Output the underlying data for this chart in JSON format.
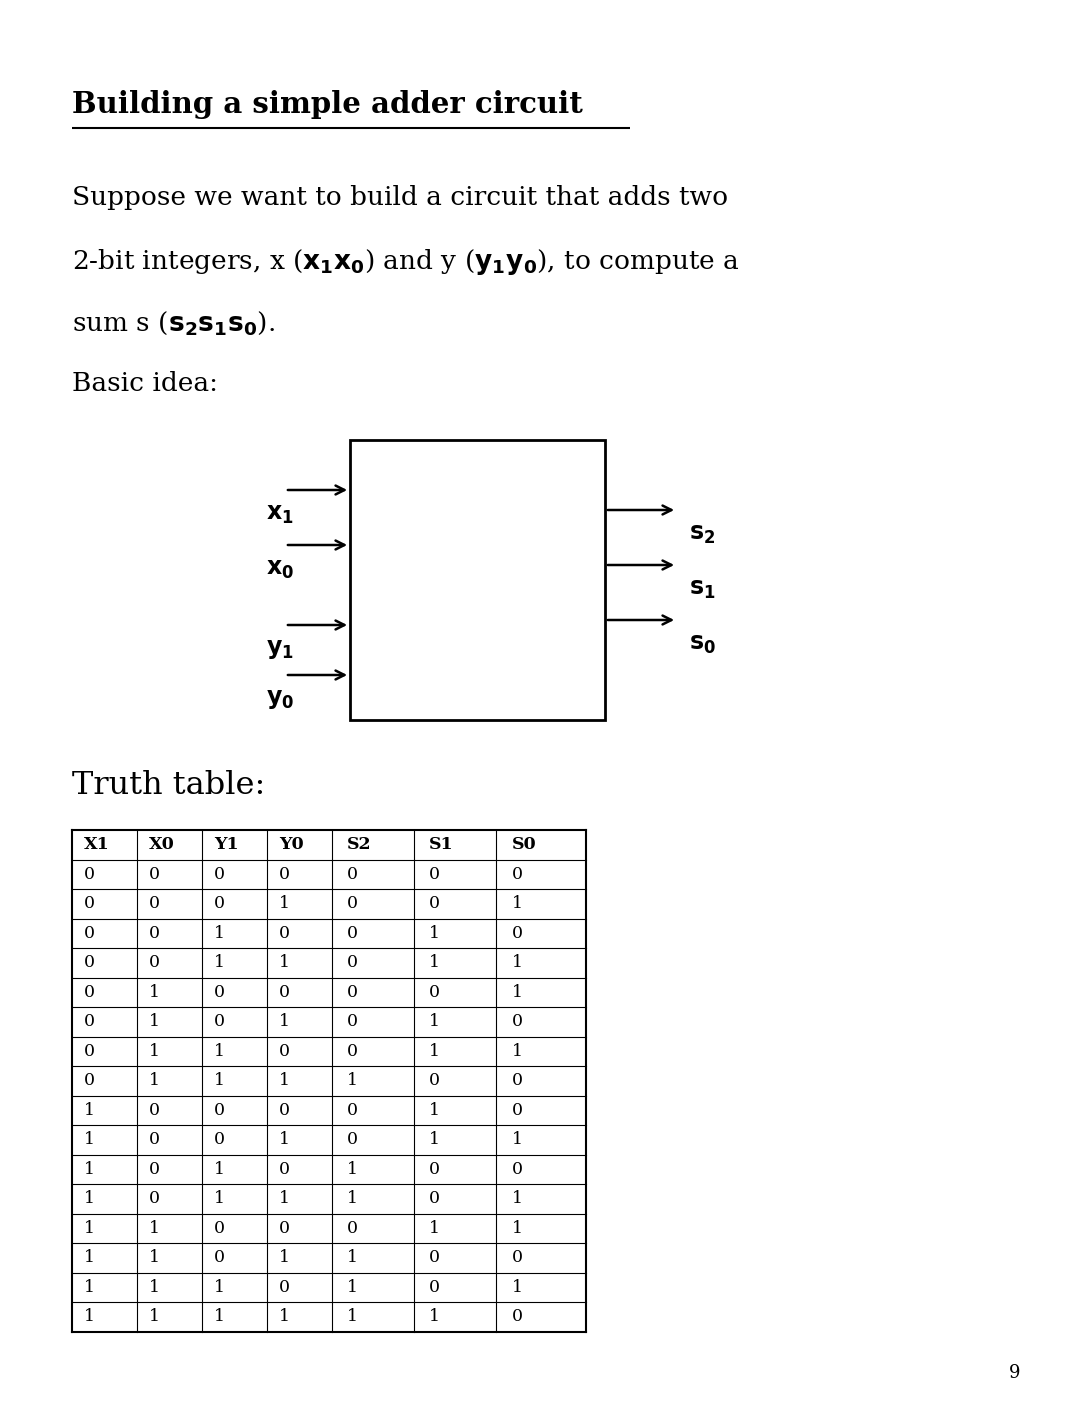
{
  "title": "Building a simple adder circuit",
  "truth_table_title": "Truth table:",
  "table_headers": [
    "X1",
    "X0",
    "Y1",
    "Y0",
    "S2",
    "S1",
    "S0"
  ],
  "table_data": [
    [
      0,
      0,
      0,
      0,
      0,
      0,
      0
    ],
    [
      0,
      0,
      0,
      1,
      0,
      0,
      1
    ],
    [
      0,
      0,
      1,
      0,
      0,
      1,
      0
    ],
    [
      0,
      0,
      1,
      1,
      0,
      1,
      1
    ],
    [
      0,
      1,
      0,
      0,
      0,
      0,
      1
    ],
    [
      0,
      1,
      0,
      1,
      0,
      1,
      0
    ],
    [
      0,
      1,
      1,
      0,
      0,
      1,
      1
    ],
    [
      0,
      1,
      1,
      1,
      1,
      0,
      0
    ],
    [
      1,
      0,
      0,
      0,
      0,
      1,
      0
    ],
    [
      1,
      0,
      0,
      1,
      0,
      1,
      1
    ],
    [
      1,
      0,
      1,
      0,
      1,
      0,
      0
    ],
    [
      1,
      0,
      1,
      1,
      1,
      0,
      1
    ],
    [
      1,
      1,
      0,
      0,
      0,
      1,
      1
    ],
    [
      1,
      1,
      0,
      1,
      1,
      0,
      0
    ],
    [
      1,
      1,
      1,
      0,
      1,
      0,
      1
    ],
    [
      1,
      1,
      1,
      1,
      1,
      1,
      0
    ]
  ],
  "bg_color": "#ffffff",
  "text_color": "#000000",
  "page_number": "9",
  "fig_width": 10.8,
  "fig_height": 14.12,
  "dpi": 100
}
